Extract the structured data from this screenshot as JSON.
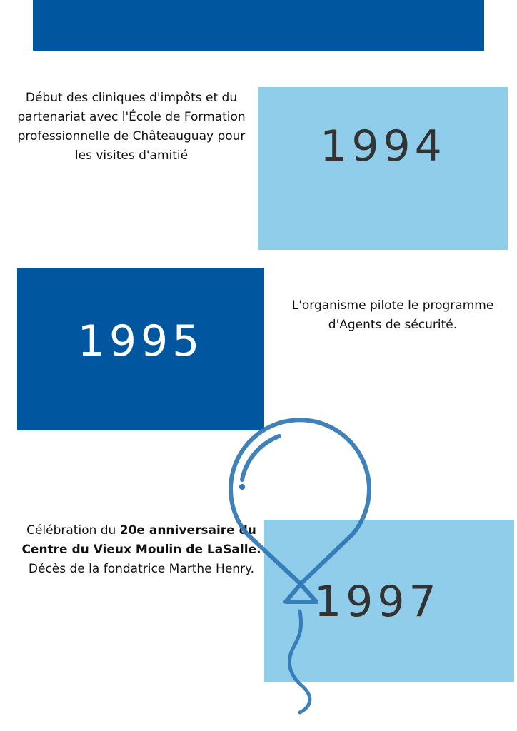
{
  "colors": {
    "dark_blue": "#0057a0",
    "light_blue": "#8fcdea",
    "balloon": "#2f77b4"
  },
  "timeline": [
    {
      "year": "1994",
      "text": "Début des cliniques d'impôts et du partenariat avec l'École de Formation professionnelle de Châteauguay pour les visites d'amitié"
    },
    {
      "year": "1995",
      "text": "L'organisme pilote le programme d'Agents de sécurité."
    },
    {
      "year": "1997",
      "text_plain_1": "Célébration du ",
      "text_bold": "20e anniversaire du Centre du Vieux Moulin de LaSalle.",
      "text_plain_2": " Décès de la fondatrice Marthe Henry."
    }
  ],
  "decoration": {
    "icon": "balloon-icon"
  }
}
